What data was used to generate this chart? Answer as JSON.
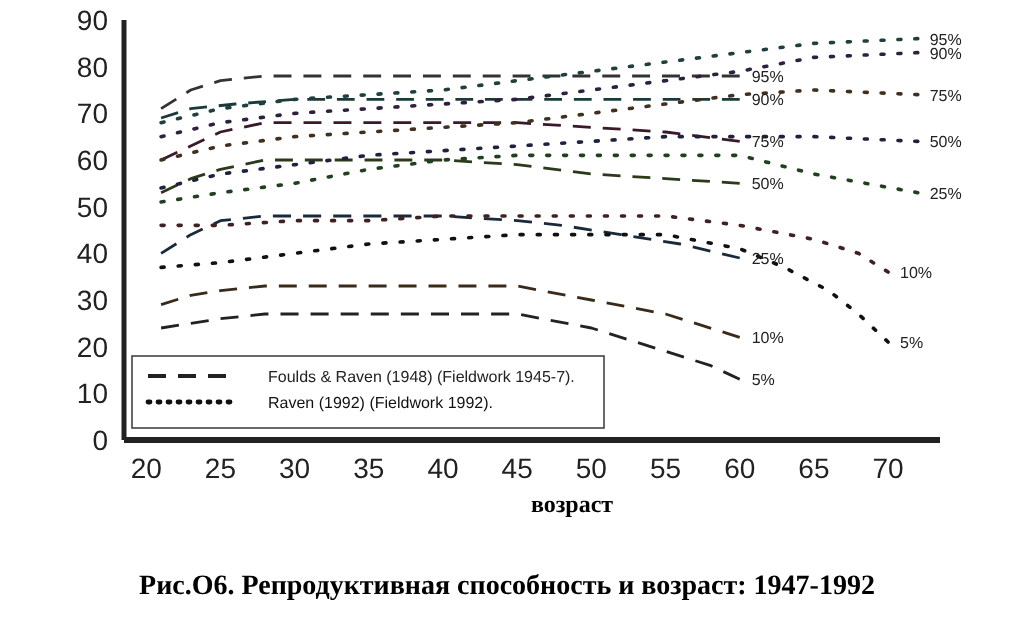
{
  "chart_data": {
    "type": "line",
    "title": "Рис.О6. Репродуктивная способность и возраст: 1947-1992",
    "xlabel": "возраст",
    "xlim": [
      18.5,
      73.5
    ],
    "ylim": [
      0,
      90
    ],
    "xticks": [
      20,
      25,
      30,
      35,
      40,
      45,
      50,
      55,
      60,
      65,
      70
    ],
    "yticks": [
      0,
      10,
      20,
      30,
      40,
      50,
      60,
      70,
      80,
      90
    ],
    "grid": false,
    "legend": "bottom left",
    "marker": "none",
    "series": [
      {
        "name": "Foulds & Raven (1948) (Fieldwork 1945-7).",
        "color": "#222222",
        "line_style": "dashed",
        "x": [
          21,
          23,
          25,
          28,
          40,
          45,
          50,
          55,
          58,
          60
        ],
        "values": [
          24,
          25,
          26,
          27,
          27,
          27,
          24,
          19,
          16,
          13
        ]
      },
      {
        "color": "#3a2a1a",
        "line_style": "dashed",
        "x": [
          21,
          23,
          25,
          28,
          45,
          50,
          55,
          60
        ],
        "values": [
          29,
          31,
          32,
          33,
          33,
          30,
          27,
          22
        ]
      },
      {
        "color": "#1a2a3a",
        "line_style": "dashed",
        "x": [
          21,
          23,
          25,
          28,
          40,
          45,
          48,
          52,
          56,
          60
        ],
        "values": [
          40,
          44,
          47,
          48,
          48,
          47,
          46,
          44,
          42,
          39
        ]
      },
      {
        "color": "#2a3a1a",
        "line_style": "dashed",
        "x": [
          21,
          23,
          25,
          28,
          40,
          45,
          50,
          55,
          60
        ],
        "values": [
          53,
          56,
          58,
          60,
          60,
          59,
          57,
          56,
          55
        ]
      },
      {
        "color": "#3a1a2a",
        "line_style": "dashed",
        "x": [
          21,
          23,
          25,
          28,
          40,
          45,
          50,
          55,
          60
        ],
        "values": [
          60,
          63,
          66,
          68,
          68,
          68,
          67,
          66,
          64
        ]
      },
      {
        "color": "#1a3a3a",
        "line_style": "dashed",
        "x": [
          21,
          23,
          26,
          30,
          60
        ],
        "values": [
          69,
          71,
          72,
          73,
          73
        ]
      },
      {
        "color": "#333333",
        "line_style": "dashed",
        "x": [
          21,
          23,
          25,
          28,
          60
        ],
        "values": [
          71,
          75,
          77,
          78,
          78
        ]
      },
      {
        "name": "Raven (1992) (Fieldwork 1992).",
        "color": "#111111",
        "line_style": "dotted",
        "x": [
          21,
          25,
          30,
          35,
          40,
          45,
          50,
          55,
          60,
          63,
          66,
          68,
          70
        ],
        "values": [
          37,
          38,
          40,
          42,
          43,
          44,
          44,
          44,
          41,
          37,
          32,
          27,
          21
        ]
      },
      {
        "color": "#402020",
        "line_style": "dotted",
        "x": [
          21,
          25,
          30,
          35,
          40,
          45,
          50,
          55,
          60,
          65,
          68,
          70
        ],
        "values": [
          46,
          46,
          47,
          47,
          48,
          48,
          48,
          48,
          46,
          43,
          40,
          36
        ]
      },
      {
        "color": "#204020",
        "line_style": "dotted",
        "x": [
          21,
          25,
          30,
          35,
          40,
          45,
          50,
          55,
          60,
          65,
          72
        ],
        "values": [
          51,
          53,
          55,
          58,
          60,
          61,
          61,
          61,
          61,
          57,
          53
        ]
      },
      {
        "color": "#202040",
        "line_style": "dotted",
        "x": [
          21,
          25,
          30,
          35,
          40,
          45,
          50,
          55,
          60,
          65,
          72
        ],
        "values": [
          54,
          57,
          59,
          61,
          62,
          63,
          64,
          65,
          65,
          65,
          64
        ]
      },
      {
        "color": "#403020",
        "line_style": "dotted",
        "x": [
          21,
          25,
          30,
          35,
          40,
          45,
          50,
          55,
          60,
          65,
          72
        ],
        "values": [
          60,
          63,
          65,
          66,
          67,
          68,
          70,
          72,
          74,
          75,
          74
        ]
      },
      {
        "color": "#302040",
        "line_style": "dotted",
        "x": [
          21,
          25,
          30,
          35,
          40,
          45,
          50,
          55,
          60,
          65,
          72
        ],
        "values": [
          65,
          68,
          70,
          71,
          72,
          73,
          75,
          77,
          79,
          82,
          83
        ]
      },
      {
        "color": "#204040",
        "line_style": "dotted",
        "x": [
          21,
          25,
          30,
          35,
          40,
          45,
          50,
          55,
          60,
          65,
          72
        ],
        "values": [
          68,
          71,
          73,
          74,
          75,
          77,
          79,
          81,
          83,
          85,
          86
        ]
      }
    ],
    "annotations": [
      {
        "text": "5%",
        "x": 60,
        "y": 13
      },
      {
        "text": "10%",
        "x": 60,
        "y": 22
      },
      {
        "text": "25%",
        "x": 60,
        "y": 39
      },
      {
        "text": "50%",
        "x": 60,
        "y": 55
      },
      {
        "text": "75%",
        "x": 60,
        "y": 64
      },
      {
        "text": "90%",
        "x": 60,
        "y": 73
      },
      {
        "text": "95%",
        "x": 60,
        "y": 78
      },
      {
        "text": "5%",
        "x": 70,
        "y": 21
      },
      {
        "text": "10%",
        "x": 70,
        "y": 36
      },
      {
        "text": "25%",
        "x": 72,
        "y": 53
      },
      {
        "text": "50%",
        "x": 72,
        "y": 64
      },
      {
        "text": "75%",
        "x": 72,
        "y": 74
      },
      {
        "text": "90%",
        "x": 72,
        "y": 83
      },
      {
        "text": "95%",
        "x": 72,
        "y": 86
      }
    ]
  }
}
